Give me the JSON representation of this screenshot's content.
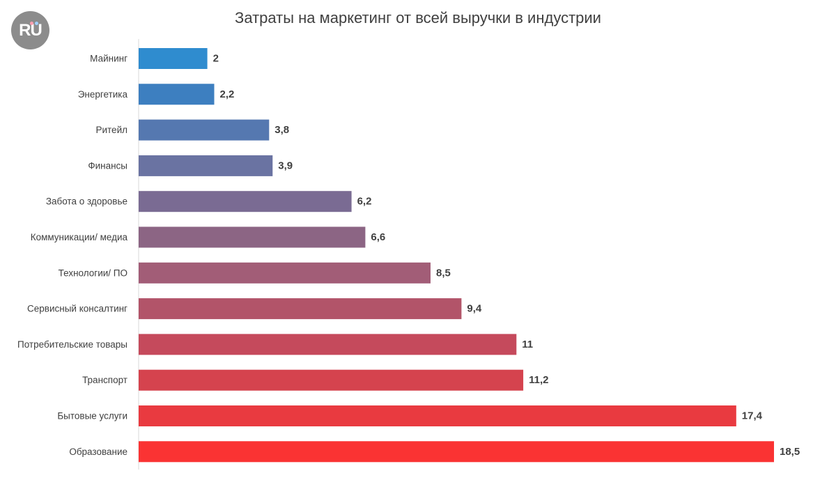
{
  "logo": {
    "text": "RU",
    "colors": {
      "background": "#8c8c8c",
      "dot_left": "#ff9fb0",
      "dot_right": "#9fd0ff"
    }
  },
  "chart_data": {
    "type": "bar",
    "orientation": "horizontal",
    "title": "Затраты на маркетинг от всей выручки в индустрии",
    "xlabel": "",
    "ylabel": "",
    "xlim": [
      0,
      18.5
    ],
    "grid": false,
    "legend": "none",
    "categories": [
      "Майнинг",
      "Энергетика",
      "Ритейл",
      "Финансы",
      "Забота о здоровье",
      "Коммуникации/ медиа",
      "Технологии/ ПО",
      "Сервисный консалтинг",
      "Потребительские товары",
      "Транспорт",
      "Бытовые услуги",
      "Образование"
    ],
    "values": [
      2,
      2.2,
      3.8,
      3.9,
      6.2,
      6.6,
      8.5,
      9.4,
      11,
      11.2,
      17.4,
      18.5
    ],
    "value_labels": [
      "2",
      "2,2",
      "3,8",
      "3,9",
      "6,2",
      "6,6",
      "8,5",
      "9,4",
      "11",
      "11,2",
      "17,4",
      "18,5"
    ],
    "colors": [
      "#2f8ccf",
      "#3d7fc0",
      "#5578b0",
      "#6a73a2",
      "#7a6b93",
      "#8c6584",
      "#a25d77",
      "#b25469",
      "#c54a5c",
      "#d5434e",
      "#e93a40",
      "#fa3333"
    ],
    "axis_color": "#d9d9d9"
  }
}
